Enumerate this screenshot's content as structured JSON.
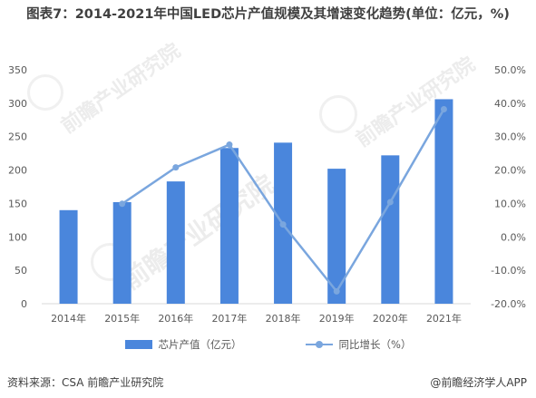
{
  "title": "图表7：2014-2021年中国LED芯片产值规模及其增速变化趋势(单位：亿元，%)",
  "source": "资料来源：CSA 前瞻产业研究院",
  "brand": "@前瞻经济学人APP",
  "watermark": "前瞻产业研究院",
  "colors": {
    "bar": "#4a86dc",
    "line": "#7aa6de",
    "axis": "#d9d9d9",
    "text": "#595959"
  },
  "chart_data": {
    "type": "bar",
    "title": "图表7：2014-2021年中国LED芯片产值规模及其增速变化趋势(单位：亿元，%)",
    "categories": [
      "2014年",
      "2015年",
      "2016年",
      "2017年",
      "2018年",
      "2019年",
      "2020年",
      "2021年"
    ],
    "series": [
      {
        "name": "芯片产值（亿元）",
        "type": "bar",
        "axis": "left",
        "values": [
          140,
          152,
          183,
          233,
          241,
          202,
          222,
          306
        ]
      },
      {
        "name": "同比增长（%）",
        "type": "line",
        "axis": "right",
        "values": [
          null,
          9.9,
          20.8,
          27.6,
          3.7,
          -16.3,
          10.4,
          38.2
        ]
      }
    ],
    "y_left": {
      "min": 0,
      "max": 350,
      "ticks": [
        "0",
        "50",
        "100",
        "150",
        "200",
        "250",
        "300",
        "350"
      ]
    },
    "y_right": {
      "min": -20,
      "max": 50,
      "ticks": [
        "-20.0%",
        "-10.0%",
        "0.0%",
        "10.0%",
        "20.0%",
        "30.0%",
        "40.0%",
        "50.0%"
      ]
    },
    "legend": "bottom",
    "grid": false
  }
}
